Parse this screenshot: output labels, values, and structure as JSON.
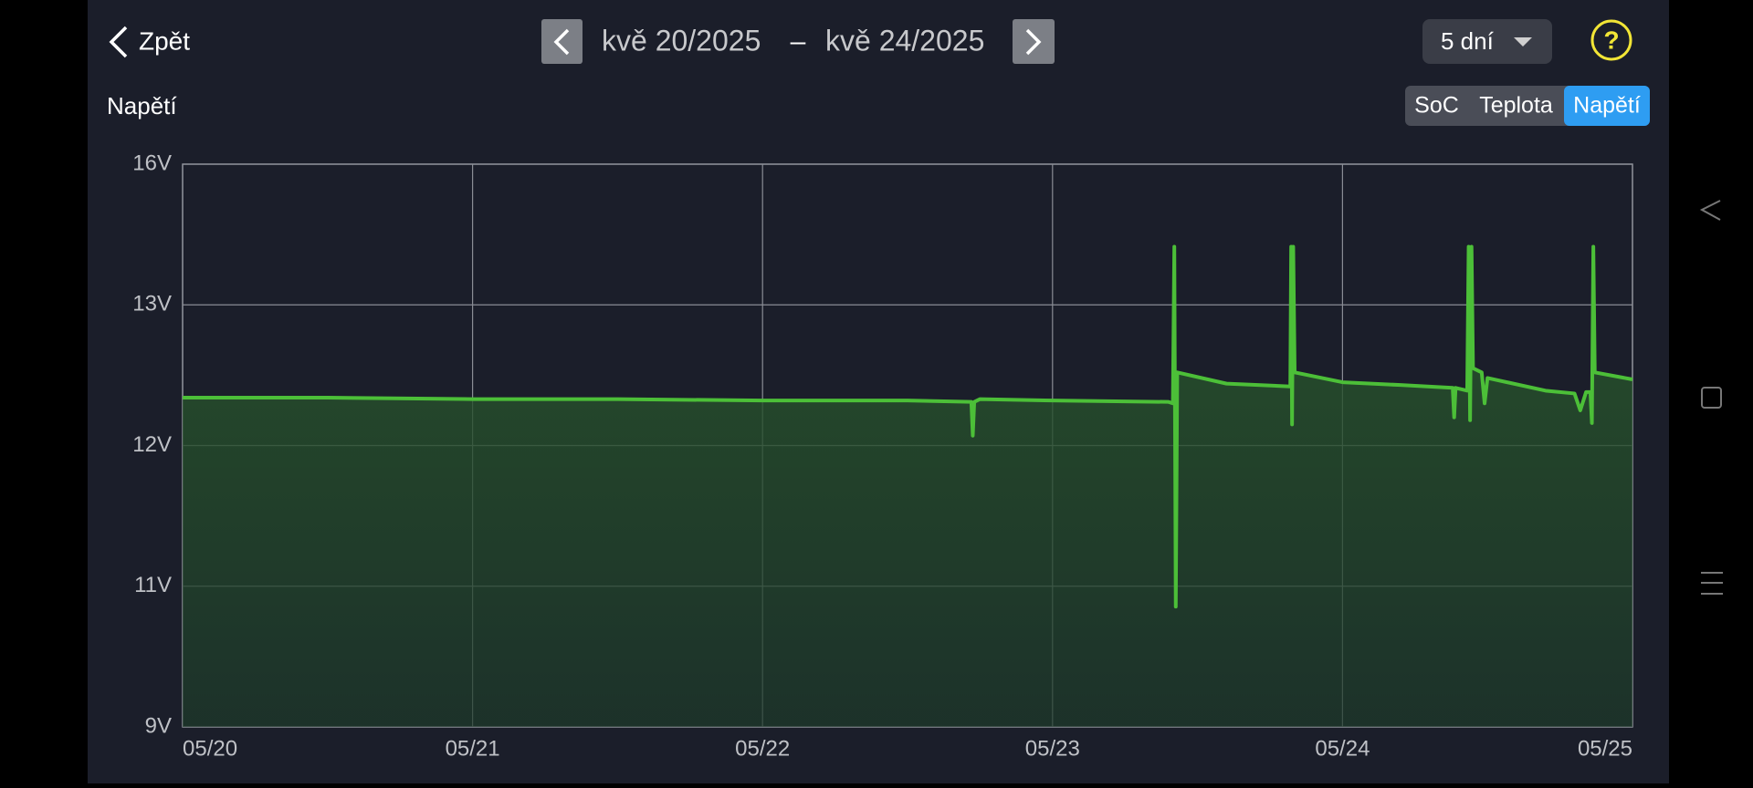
{
  "header": {
    "back": "Zpět",
    "date_from": "kvě 20/2025",
    "separator": "–",
    "date_to": "kvě 24/2025",
    "period": "5 dní",
    "help": "?"
  },
  "section_title": "Napětí",
  "tabs": [
    "SoC",
    "Teplota",
    "Napětí"
  ],
  "active_tab": 2,
  "chart_data": {
    "type": "area",
    "x": [
      20.0,
      20.5,
      21.0,
      21.5,
      22.0,
      22.5,
      22.72,
      22.725,
      22.73,
      22.75,
      23.0,
      23.4,
      23.415,
      23.42,
      23.425,
      23.43,
      23.6,
      23.82,
      23.823,
      23.826,
      23.83,
      23.835,
      24.0,
      24.2,
      24.38,
      24.385,
      24.39,
      24.43,
      24.435,
      24.44,
      24.445,
      24.45,
      24.48,
      24.49,
      24.5,
      24.7,
      24.8,
      24.82,
      24.84,
      24.855,
      24.86,
      24.865,
      24.87,
      25.0
    ],
    "values": [
      12.34,
      12.34,
      12.33,
      12.33,
      12.32,
      12.32,
      12.31,
      12.07,
      12.31,
      12.33,
      12.32,
      12.31,
      12.3,
      14.24,
      10.71,
      12.52,
      12.44,
      12.42,
      14.24,
      12.15,
      14.24,
      12.52,
      12.45,
      12.43,
      12.41,
      12.2,
      12.41,
      12.39,
      14.24,
      12.18,
      14.24,
      12.55,
      12.52,
      12.3,
      12.48,
      12.39,
      12.37,
      12.25,
      12.38,
      12.38,
      12.16,
      14.24,
      12.52,
      12.47
    ],
    "color": "#4cbf38",
    "xlim": [
      20,
      25
    ],
    "xticks": [
      {
        "value": 20,
        "label": "05/20"
      },
      {
        "value": 21,
        "label": "05/21"
      },
      {
        "value": 22,
        "label": "05/22"
      },
      {
        "value": 23,
        "label": "05/23"
      },
      {
        "value": 24,
        "label": "05/24"
      },
      {
        "value": 25,
        "label": "05/25"
      }
    ],
    "ylim": [
      9,
      16
    ],
    "yticks": [
      {
        "value": 9,
        "label": "9V"
      },
      {
        "value": 11,
        "label": "11V"
      },
      {
        "value": 12,
        "label": "12V"
      },
      {
        "value": 13,
        "label": "13V"
      },
      {
        "value": 16,
        "label": "16V"
      }
    ],
    "grid": true
  }
}
